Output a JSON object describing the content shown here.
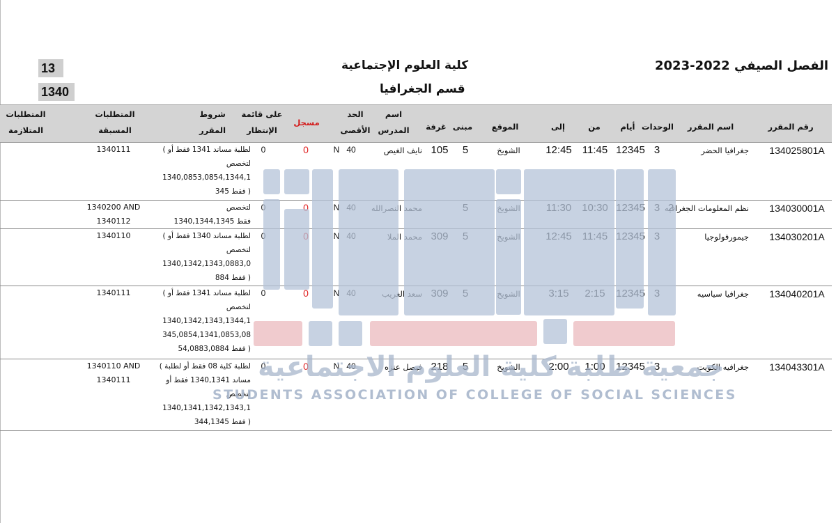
{
  "header": {
    "college": "كلية العلوم الإجتماعية",
    "department": "قسم الجغرافيا",
    "semester": "الفصل الصيفي 2022-2023",
    "box_top": "13",
    "box_bottom": "1340"
  },
  "columns": {
    "course_no": "رقم المقرر",
    "course_name": "اسم المقرر",
    "units": "الوحدات",
    "days": "أيام",
    "from": "من",
    "to": "إلى",
    "location": "الموقع",
    "building": "مبنى",
    "room": "غرفة",
    "instructor_1": "اسم",
    "instructor_2": "المدرس",
    "max_1": "الحد",
    "max_2": "الأقصى",
    "registered": "مسجل",
    "waitlist_1": "على قائمة",
    "waitlist_2": "الإنتظار",
    "conditions_1": "شروط",
    "conditions_2": "المقرر",
    "prereq_1": "المتطلبات",
    "prereq_2": "المسبقة",
    "coreq_1": "المتطلبات",
    "coreq_2": "المتلازمة"
  },
  "rows": [
    {
      "course_no": "134025801A",
      "course_name": "جغرافيا الحضر",
      "section": "",
      "units": "3",
      "days": "12345",
      "from": "11:45",
      "to": "12:45",
      "location": "الشويخ",
      "building": "5",
      "room": "105",
      "instructor": "نايف الغيص",
      "max": "40",
      "flag": "N",
      "registered": "0",
      "waitlist": "0",
      "conditions": [
        "لطلبة مساند 1341 فقط أو )",
        "لتخصص",
        "1340,0853,0854,1344,1",
        "( فقط 345"
      ],
      "prereq": [
        "1340111"
      ],
      "coreq": []
    },
    {
      "course_no": "134030001A",
      "course_name": "نظم المعلومات الجغرافيه",
      "section": "2",
      "units": "3",
      "days": "12345",
      "from": "10:30",
      "to": "11:30",
      "location": "الشويخ",
      "building": "5",
      "room": "",
      "instructor": "محمد النصرالله",
      "max": "40",
      "flag": "N",
      "registered": "0",
      "waitlist": "0",
      "conditions": [
        "لتخصص",
        "فقط 1340,1344,1345"
      ],
      "prereq": [
        "1340200 AND",
        "1340112"
      ],
      "coreq": []
    },
    {
      "course_no": "134030201A",
      "course_name": "جيمورفولوجيا",
      "section": "",
      "units": "3",
      "days": "12345",
      "from": "11:45",
      "to": "12:45",
      "location": "الشويخ",
      "building": "5",
      "room": "309",
      "instructor": "محمد الملا",
      "max": "40",
      "flag": "N",
      "registered": "0",
      "waitlist": "0",
      "conditions": [
        "لطلبة مساند 1340 فقط أو )",
        "لتخصص",
        "1340,1342,1343,0883,0",
        "( فقط 884"
      ],
      "prereq": [
        "1340110"
      ],
      "coreq": []
    },
    {
      "course_no": "134040201A",
      "course_name": "جغرافيا سياسيه",
      "section": "",
      "units": "3",
      "days": "12345",
      "from": "2:15",
      "to": "3:15",
      "location": "الشويخ",
      "building": "5",
      "room": "309",
      "instructor": "سعد الغريب",
      "max": "40",
      "flag": "N",
      "registered": "0",
      "waitlist": "0",
      "conditions": [
        "لطلبة مساند 1341 فقط أو )",
        "لتخصص",
        "1340,1342,1343,1344,1",
        "345,0854,1341,0853,08",
        "( فقط 54,0883,0884"
      ],
      "prereq": [
        "1340111"
      ],
      "coreq": []
    },
    {
      "course_no": "134043301A",
      "course_name": "جغرافيه الكويت",
      "section": "",
      "units": "3",
      "days": "12345",
      "from": "1:00",
      "to": "2:00",
      "location": "الشويخ",
      "building": "5",
      "room": "218",
      "instructor": "فيصل عنزه",
      "max": "40",
      "flag": "N",
      "registered": "0",
      "waitlist": "0",
      "conditions": [
        "لطلبة كلية 08 فقط أو لطلبة )",
        "مساند 1340,1341 فقط أو",
        "لتخصص",
        "1340,1341,1342,1343,1",
        "( فقط 344,1345"
      ],
      "prereq": [
        "1340110 AND",
        "1340111"
      ],
      "coreq": []
    }
  ],
  "watermark": {
    "arabic": "جمعية طلبة كلية العلوم الاجتماعية",
    "english": "STUDENTS ASSOCIATION OF COLLEGE OF SOCIAL SCIENCES"
  }
}
